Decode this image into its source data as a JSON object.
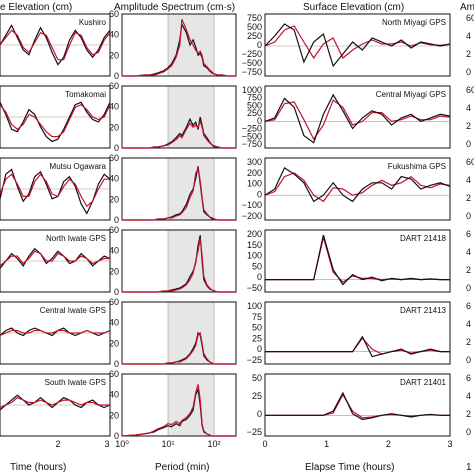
{
  "headers": {
    "col1_title": "e Elevation (cm)",
    "col2_title": "Amplitude Spectrum (cm·s)",
    "col3_title": "Surface Elevation (cm)",
    "col4_title": "Am",
    "col1_xlabel": "Time (hours)",
    "col2_xlabel": "Period (min)",
    "col3_xlabel": "Elapse Time (hours)",
    "col4_fragment": "1"
  },
  "series_colors": {
    "observed": "#111111",
    "synthetic": "#c8102e",
    "grid": "#9a9a9a",
    "band": "#e6e6e6"
  },
  "chart_data": [
    {
      "panel": "left-column",
      "type": "line",
      "stations": [
        "Kushiro",
        "Tomakomai",
        "Mutsu Ogawara",
        "North Iwate GPS",
        "Central Iwate GPS",
        "South Iwate GPS"
      ],
      "x_ticks": [
        "2",
        "3"
      ],
      "xlabel": "Time (hours)",
      "series": [
        {
          "name": "observed",
          "values": [
            [
              0.0,
              0.4,
              0.8,
              0.3,
              -0.2,
              -0.4,
              0.2,
              0.7,
              0.3,
              -0.3,
              -0.8,
              -0.5,
              0.2,
              0.6,
              0.3,
              -0.2,
              -0.5,
              -0.2,
              0.3,
              0.6
            ],
            [
              0.6,
              0.1,
              -0.5,
              -0.6,
              -0.2,
              0.3,
              0.1,
              -0.4,
              -0.8,
              -1.0,
              -0.9,
              -0.5,
              0.0,
              0.5,
              0.6,
              0.2,
              -0.1,
              -0.2,
              0.1,
              0.6
            ],
            [
              -0.4,
              0.6,
              0.8,
              0.1,
              -0.5,
              -0.2,
              0.5,
              0.7,
              0.2,
              -0.4,
              -0.3,
              0.3,
              0.5,
              0.1,
              -0.6,
              -1.0,
              -0.5,
              0.2,
              0.6,
              0.4
            ],
            [
              -0.3,
              0.0,
              0.3,
              0.1,
              -0.2,
              0.2,
              0.5,
              0.3,
              -0.1,
              0.1,
              0.4,
              0.2,
              -0.1,
              0.0,
              0.3,
              0.1,
              -0.2,
              0.0,
              0.2,
              0.1
            ],
            [
              -0.1,
              0.1,
              0.2,
              0.0,
              -0.1,
              0.1,
              0.2,
              0.1,
              0.0,
              -0.1,
              0.1,
              0.2,
              0.0,
              -0.1,
              0.0,
              0.1,
              0.0,
              -0.1,
              0.0,
              0.1
            ],
            [
              -0.2,
              0.0,
              0.2,
              0.4,
              0.2,
              0.0,
              0.1,
              0.3,
              0.1,
              -0.1,
              0.1,
              0.3,
              0.2,
              0.0,
              -0.1,
              0.1,
              0.2,
              0.0,
              -0.1,
              0.0
            ]
          ]
        },
        {
          "name": "synthetic",
          "values": [
            [
              0.0,
              0.3,
              0.6,
              0.4,
              -0.1,
              -0.3,
              0.1,
              0.5,
              0.4,
              -0.1,
              -0.6,
              -0.6,
              0.0,
              0.5,
              0.4,
              -0.1,
              -0.4,
              -0.3,
              0.2,
              0.5
            ],
            [
              0.5,
              0.2,
              -0.3,
              -0.5,
              -0.3,
              0.1,
              0.0,
              -0.3,
              -0.6,
              -0.8,
              -0.8,
              -0.6,
              -0.1,
              0.4,
              0.5,
              0.3,
              0.0,
              -0.1,
              0.0,
              0.5
            ],
            [
              -0.2,
              0.4,
              0.6,
              0.2,
              -0.3,
              -0.3,
              0.3,
              0.6,
              0.3,
              -0.2,
              -0.3,
              0.1,
              0.4,
              0.2,
              -0.3,
              -0.7,
              -0.5,
              0.0,
              0.4,
              0.4
            ],
            [
              -0.2,
              0.0,
              0.2,
              0.2,
              -0.1,
              0.1,
              0.4,
              0.3,
              0.0,
              0.0,
              0.3,
              0.2,
              0.0,
              0.0,
              0.2,
              0.1,
              -0.1,
              0.0,
              0.1,
              0.1
            ],
            [
              -0.1,
              0.0,
              0.1,
              0.1,
              0.0,
              0.0,
              0.1,
              0.1,
              0.0,
              0.0,
              0.1,
              0.1,
              0.0,
              0.0,
              0.0,
              0.1,
              0.0,
              0.0,
              0.0,
              0.1
            ],
            [
              -0.1,
              0.0,
              0.1,
              0.3,
              0.2,
              0.1,
              0.1,
              0.2,
              0.1,
              0.0,
              0.1,
              0.2,
              0.2,
              0.1,
              0.0,
              0.1,
              0.1,
              0.0,
              0.0,
              0.0
            ]
          ]
        }
      ]
    },
    {
      "panel": "spectrum",
      "type": "line",
      "xlabel": "Period (min)",
      "x_ticks": [
        "10⁰",
        "10¹",
        "10²"
      ],
      "y_ticks": [
        "0",
        "20",
        "40",
        "60"
      ],
      "ylim": [
        0,
        60
      ],
      "periods_min": [
        1,
        2,
        3,
        4,
        5,
        6,
        8,
        10,
        12,
        15,
        18,
        20,
        25,
        30,
        35,
        40,
        45,
        50,
        55,
        60,
        70,
        80,
        90,
        100,
        120,
        150,
        200,
        300
      ],
      "series": [
        {
          "name": "observed",
          "values": [
            [
              0,
              0,
              1,
              1,
              2,
              3,
              5,
              8,
              12,
              20,
              35,
              50,
              42,
              30,
              35,
              28,
              20,
              22,
              18,
              10,
              8,
              5,
              3,
              2,
              1,
              1,
              0,
              0
            ],
            [
              0,
              0,
              0,
              0,
              1,
              1,
              2,
              4,
              6,
              10,
              14,
              12,
              20,
              28,
              22,
              25,
              18,
              30,
              22,
              14,
              10,
              6,
              3,
              2,
              1,
              0,
              0,
              0
            ],
            [
              0,
              0,
              0,
              0,
              0,
              1,
              1,
              2,
              3,
              5,
              6,
              8,
              15,
              25,
              30,
              40,
              52,
              35,
              20,
              8,
              5,
              3,
              2,
              1,
              0,
              0,
              0,
              0
            ],
            [
              0,
              0,
              0,
              0,
              0,
              0,
              1,
              1,
              2,
              3,
              4,
              5,
              8,
              15,
              20,
              28,
              45,
              55,
              30,
              12,
              6,
              3,
              2,
              1,
              0,
              0,
              0,
              0
            ],
            [
              0,
              0,
              0,
              0,
              0,
              0,
              0,
              1,
              1,
              2,
              3,
              4,
              6,
              10,
              15,
              20,
              30,
              28,
              18,
              8,
              4,
              2,
              1,
              0,
              0,
              0,
              0,
              0
            ],
            [
              0,
              1,
              2,
              3,
              4,
              6,
              8,
              10,
              9,
              12,
              10,
              14,
              16,
              20,
              25,
              40,
              45,
              30,
              10,
              4,
              2,
              1,
              0,
              0,
              0,
              0,
              0,
              0
            ]
          ]
        },
        {
          "name": "synthetic",
          "values": [
            [
              0,
              0,
              1,
              1,
              1,
              2,
              4,
              7,
              10,
              18,
              30,
              55,
              45,
              35,
              30,
              25,
              22,
              24,
              20,
              12,
              9,
              6,
              4,
              2,
              1,
              1,
              0,
              0
            ],
            [
              0,
              0,
              0,
              0,
              1,
              1,
              2,
              3,
              5,
              8,
              12,
              10,
              18,
              24,
              20,
              22,
              20,
              26,
              20,
              12,
              8,
              5,
              3,
              1,
              1,
              0,
              0,
              0
            ],
            [
              0,
              0,
              0,
              0,
              0,
              1,
              1,
              2,
              2,
              4,
              5,
              7,
              12,
              22,
              28,
              45,
              50,
              38,
              22,
              10,
              6,
              3,
              1,
              1,
              0,
              0,
              0,
              0
            ],
            [
              0,
              0,
              0,
              0,
              0,
              0,
              1,
              1,
              1,
              2,
              3,
              4,
              7,
              12,
              18,
              30,
              40,
              52,
              35,
              15,
              7,
              4,
              2,
              1,
              0,
              0,
              0,
              0
            ],
            [
              0,
              0,
              0,
              0,
              0,
              0,
              0,
              1,
              1,
              2,
              2,
              3,
              5,
              9,
              13,
              18,
              28,
              30,
              20,
              10,
              5,
              2,
              1,
              0,
              0,
              0,
              0,
              0
            ],
            [
              0,
              1,
              2,
              3,
              5,
              7,
              9,
              12,
              11,
              14,
              12,
              15,
              18,
              22,
              28,
              42,
              50,
              35,
              12,
              5,
              2,
              1,
              0,
              0,
              0,
              0,
              0,
              0
            ]
          ]
        }
      ]
    },
    {
      "panel": "right-column",
      "type": "line",
      "xlabel": "Elapse Time (hours)",
      "x_ticks": [
        "0",
        "1",
        "2",
        "3"
      ],
      "stations": [
        "North Miyagi GPS",
        "Central Miyagi GPS",
        "Fukushima GPS",
        "DART 21418",
        "DART 21413",
        "DART 21401"
      ],
      "y_ticks": [
        [
          "750",
          "500",
          "250",
          "0",
          "−250",
          "−500",
          "−750"
        ],
        [
          "1000",
          "750",
          "500",
          "250",
          "0",
          "−250",
          "−500",
          "−750"
        ],
        [
          "300",
          "200",
          "100",
          "0",
          "−100",
          "−200"
        ],
        [
          "200",
          "150",
          "100",
          "50",
          "0",
          "−50"
        ],
        [
          "100",
          "75",
          "50",
          "25",
          "0",
          "−25"
        ],
        [
          "50",
          "25",
          "0",
          "−25"
        ]
      ],
      "ylims": [
        [
          -750,
          800
        ],
        [
          -750,
          1000
        ],
        [
          -200,
          300
        ],
        [
          -50,
          200
        ],
        [
          -25,
          100
        ],
        [
          -25,
          50
        ]
      ],
      "series": [
        {
          "name": "observed",
          "values": [
            [
              0,
              250,
              550,
              400,
              -400,
              100,
              300,
              -500,
              -200,
              100,
              -100,
              200,
              100,
              0,
              150,
              -50,
              100,
              50,
              0,
              50
            ],
            [
              0,
              100,
              650,
              400,
              -400,
              -600,
              200,
              750,
              300,
              -200,
              100,
              300,
              200,
              -100,
              100,
              200,
              0,
              100,
              200,
              150
            ],
            [
              0,
              50,
              220,
              170,
              100,
              -50,
              0,
              100,
              0,
              -50,
              50,
              100,
              100,
              50,
              150,
              130,
              50,
              80,
              100,
              70
            ],
            [
              0,
              0,
              0,
              0,
              0,
              0,
              180,
              40,
              -20,
              20,
              0,
              10,
              -5,
              5,
              0,
              5,
              0,
              3,
              0,
              0
            ],
            [
              0,
              0,
              0,
              0,
              0,
              0,
              0,
              0,
              0,
              0,
              30,
              -10,
              -5,
              0,
              5,
              -5,
              0,
              5,
              0,
              0
            ],
            [
              0,
              0,
              0,
              0,
              0,
              0,
              0,
              5,
              27,
              2,
              -5,
              -3,
              0,
              2,
              0,
              -2,
              0,
              1,
              0,
              0
            ]
          ]
        },
        {
          "name": "synthetic",
          "values": [
            [
              0,
              100,
              400,
              500,
              100,
              -300,
              50,
              200,
              -300,
              -100,
              50,
              150,
              50,
              50,
              100,
              0,
              80,
              30,
              20,
              40
            ],
            [
              0,
              50,
              500,
              550,
              50,
              -500,
              -100,
              600,
              400,
              -100,
              0,
              250,
              250,
              0,
              50,
              150,
              50,
              50,
              150,
              120
            ],
            [
              0,
              30,
              150,
              180,
              120,
              0,
              -50,
              60,
              50,
              0,
              20,
              80,
              120,
              80,
              100,
              150,
              80,
              60,
              90,
              80
            ],
            [
              0,
              0,
              0,
              0,
              0,
              0,
              170,
              30,
              -10,
              15,
              5,
              5,
              0,
              3,
              0,
              3,
              0,
              2,
              0,
              0
            ],
            [
              0,
              0,
              0,
              0,
              0,
              0,
              0,
              0,
              0,
              0,
              27,
              5,
              -5,
              0,
              3,
              -3,
              0,
              3,
              0,
              0
            ],
            [
              0,
              0,
              0,
              0,
              0,
              0,
              0,
              3,
              25,
              5,
              -3,
              -2,
              0,
              1,
              0,
              -1,
              0,
              1,
              0,
              0
            ]
          ]
        }
      ]
    },
    {
      "panel": "fragment-column",
      "type": "line",
      "y_ticks": [
        [
          "60",
          "4",
          "2",
          "0"
        ],
        [
          "60",
          "4",
          "2",
          "0"
        ],
        [
          "60",
          "4",
          "2",
          "0"
        ],
        [
          "6",
          "4",
          "2",
          "0"
        ],
        [
          "6",
          "4",
          "2",
          "0"
        ],
        [
          "6",
          "4",
          "2",
          "0"
        ]
      ]
    }
  ]
}
